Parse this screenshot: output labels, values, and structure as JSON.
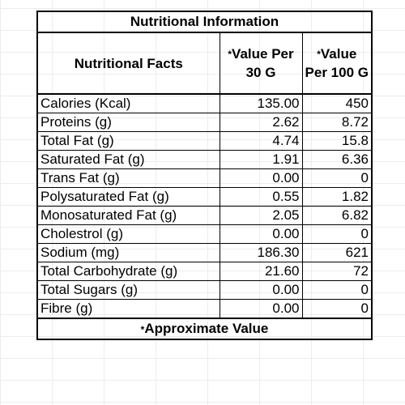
{
  "table": {
    "title": "Nutritional Information",
    "headers": {
      "facts": "Nutritional Facts",
      "per30_star": "*",
      "per30": "Value Per 30 G",
      "per100_star": "*",
      "per100": "Value Per 100 G"
    },
    "rows": [
      {
        "label": "Calories (Kcal)",
        "per30": "135.00",
        "per100": "450"
      },
      {
        "label": "Proteins (g)",
        "per30": "2.62",
        "per100": "8.72"
      },
      {
        "label": "Total Fat (g)",
        "per30": "4.74",
        "per100": "15.8"
      },
      {
        "label": "Saturated Fat (g)",
        "per30": "1.91",
        "per100": "6.36"
      },
      {
        "label": "Trans Fat (g)",
        "per30": "0.00",
        "per100": "0"
      },
      {
        "label": "Polysaturated Fat (g)",
        "per30": "0.55",
        "per100": "1.82"
      },
      {
        "label": "Monosaturated Fat (g)",
        "per30": "2.05",
        "per100": "6.82"
      },
      {
        "label": "Cholestrol (g)",
        "per30": "0.00",
        "per100": "0"
      },
      {
        "label": "Sodium  (mg)",
        "per30": "186.30",
        "per100": "621"
      },
      {
        "label": "Total Carbohydrate (g)",
        "per30": "21.60",
        "per100": "72"
      },
      {
        "label": "Total Sugars (g)",
        "per30": "0.00",
        "per100": "0"
      },
      {
        "label": "Fibre (g)",
        "per30": "0.00",
        "per100": "0"
      }
    ],
    "footer_star": "*",
    "footer": "Approximate Value"
  }
}
